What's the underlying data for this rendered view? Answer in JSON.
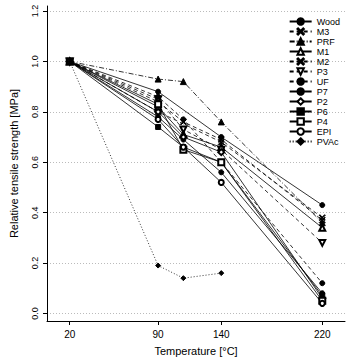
{
  "chart_data": {
    "type": "line",
    "x_label": "Temperature [°C]",
    "y_label": "Relative tensile strength [MPa]",
    "xlim": [
      2,
      238
    ],
    "xticks": [
      20,
      90,
      140,
      220
    ],
    "ylim": [
      -0.03,
      1.22
    ],
    "yticks": [
      {
        "value": 0,
        "label": "0.0"
      },
      {
        "value": 0.2,
        "label": "0.2"
      },
      {
        "value": 0.4,
        "label": "0.4"
      },
      {
        "value": 0.6,
        "label": "0.6"
      },
      {
        "value": 0.8,
        "label": "0.8"
      },
      {
        "value": 1,
        "label": "1.0"
      },
      {
        "value": 1.2,
        "label": "1.2"
      }
    ],
    "grid": true,
    "legend": "top-right",
    "series": [
      {
        "name": "Wood",
        "color": "#000000",
        "marker": "circle",
        "line_style": "solid",
        "x": [
          20,
          90,
          140,
          220
        ],
        "values": [
          1.0,
          0.88,
          0.7,
          0.43
        ]
      },
      {
        "name": "M3",
        "color": "#000000",
        "marker": "x",
        "line_style": "dashed",
        "x": [
          20,
          90,
          110,
          140,
          220
        ],
        "values": [
          1.0,
          0.84,
          0.76,
          0.69,
          0.37
        ]
      },
      {
        "name": "PRF",
        "color": "#000000",
        "marker": "triangle",
        "line_style": "dashdot",
        "x": [
          20,
          90,
          110,
          140,
          220
        ],
        "values": [
          1.0,
          0.93,
          0.92,
          0.76,
          0.36
        ]
      },
      {
        "name": "M1",
        "color": "#000000",
        "marker": "triangle-open",
        "line_style": "solid",
        "x": [
          20,
          90,
          110,
          140,
          220
        ],
        "values": [
          1.0,
          0.82,
          0.71,
          0.66,
          0.34
        ]
      },
      {
        "name": "M2",
        "color": "#000000",
        "marker": "x",
        "line_style": "dashed",
        "x": [
          20,
          90,
          140,
          220
        ],
        "values": [
          1.0,
          0.8,
          0.68,
          0.38
        ]
      },
      {
        "name": "P3",
        "color": "#000000",
        "marker": "triangle-down-open",
        "line_style": "dashed",
        "x": [
          20,
          90,
          110,
          140,
          220
        ],
        "values": [
          1.0,
          0.85,
          0.73,
          0.65,
          0.28
        ]
      },
      {
        "name": "UF",
        "color": "#000000",
        "marker": "circle",
        "line_style": "dashed",
        "x": [
          20,
          90,
          110,
          140,
          220
        ],
        "values": [
          1.0,
          0.86,
          0.77,
          0.6,
          0.12
        ]
      },
      {
        "name": "P7",
        "color": "#000000",
        "marker": "circle",
        "line_style": "solid",
        "x": [
          20,
          90,
          110,
          140,
          220
        ],
        "values": [
          1.0,
          0.78,
          0.69,
          0.56,
          0.08
        ]
      },
      {
        "name": "P2",
        "color": "#000000",
        "marker": "diamond-open",
        "line_style": "solid",
        "x": [
          20,
          90,
          110,
          140,
          220
        ],
        "values": [
          1.0,
          0.8,
          0.7,
          0.64,
          0.06
        ]
      },
      {
        "name": "P6",
        "color": "#000000",
        "marker": "square",
        "line_style": "solid",
        "x": [
          20,
          90,
          110,
          140,
          220
        ],
        "values": [
          1.0,
          0.74,
          0.66,
          0.6,
          0.07
        ]
      },
      {
        "name": "P4",
        "color": "#000000",
        "marker": "square-open",
        "line_style": "solid",
        "x": [
          20,
          90,
          110,
          140,
          220
        ],
        "values": [
          1.0,
          0.83,
          0.65,
          0.6,
          0.05
        ]
      },
      {
        "name": "EPI",
        "color": "#000000",
        "marker": "circle-open",
        "line_style": "solid",
        "x": [
          20,
          90,
          110,
          140,
          220
        ],
        "values": [
          1.0,
          0.77,
          0.66,
          0.52,
          0.04
        ]
      },
      {
        "name": "PVAc",
        "color": "#000000",
        "marker": "diamond",
        "line_style": "dotted",
        "x": [
          20,
          90,
          110,
          140
        ],
        "values": [
          1.0,
          0.19,
          0.14,
          0.16
        ]
      }
    ]
  }
}
